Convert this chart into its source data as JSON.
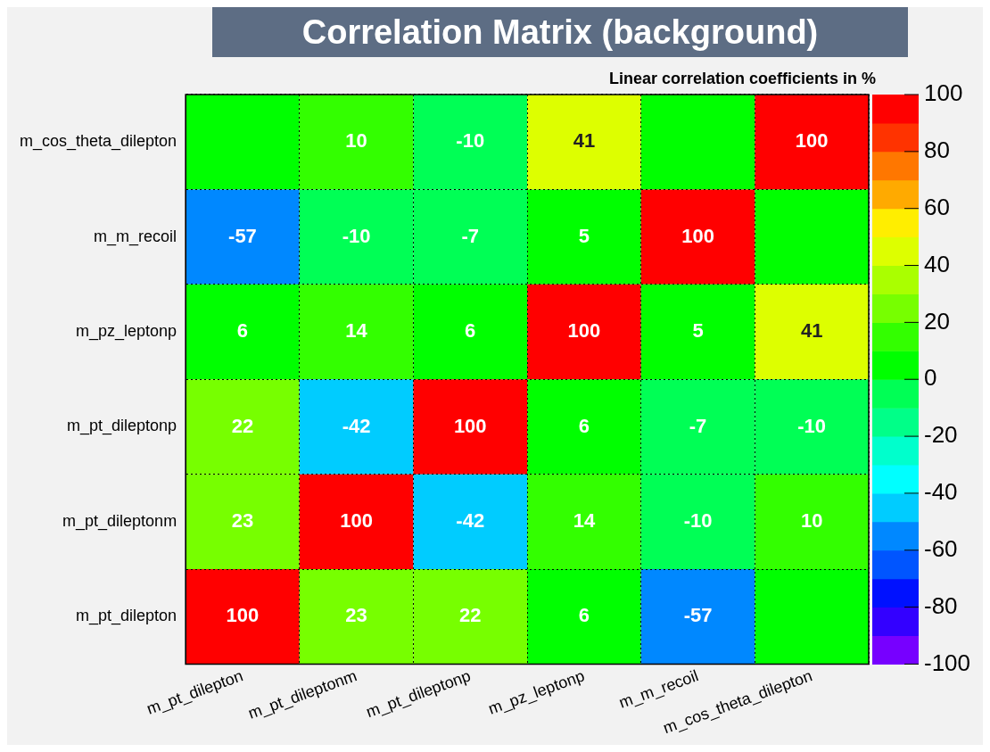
{
  "chart_data": {
    "type": "heatmap",
    "title": "Correlation Matrix (background)",
    "clabel": "Linear correlation coefficients in %",
    "categories": [
      "m_pt_dilepton",
      "m_pt_dileptonm",
      "m_pt_dileptonp",
      "m_pz_leptonp",
      "m_m_recoil",
      "m_cos_theta_dilepton"
    ],
    "y_categories": [
      "m_cos_theta_dilepton",
      "m_m_recoil",
      "m_pz_leptonp",
      "m_pt_dileptonp",
      "m_pt_dileptonm",
      "m_pt_dilepton"
    ],
    "cells": [
      [
        0,
        10,
        -10,
        41,
        0,
        100
      ],
      [
        -57,
        -10,
        -7,
        5,
        100,
        0
      ],
      [
        6,
        14,
        6,
        100,
        5,
        41
      ],
      [
        22,
        -42,
        100,
        6,
        -7,
        -10
      ],
      [
        23,
        100,
        -42,
        14,
        -10,
        10
      ],
      [
        100,
        23,
        22,
        6,
        -57,
        0
      ]
    ],
    "cell_labels": [
      [
        null,
        "10",
        "-10",
        "41",
        null,
        "100"
      ],
      [
        "-57",
        "-10",
        "-7",
        "5",
        "100",
        null
      ],
      [
        "6",
        "14",
        "6",
        "100",
        "5",
        "41"
      ],
      [
        "22",
        "-42",
        "100",
        "6",
        "-7",
        "-10"
      ],
      [
        "23",
        "100",
        "-42",
        "14",
        "-10",
        "10"
      ],
      [
        "100",
        "23",
        "22",
        "6",
        "-57",
        null
      ]
    ],
    "clim": [
      -100,
      100
    ],
    "cticks": [
      -100,
      -80,
      -60,
      -40,
      -20,
      0,
      20,
      40,
      60,
      80,
      100
    ],
    "grid": true
  }
}
